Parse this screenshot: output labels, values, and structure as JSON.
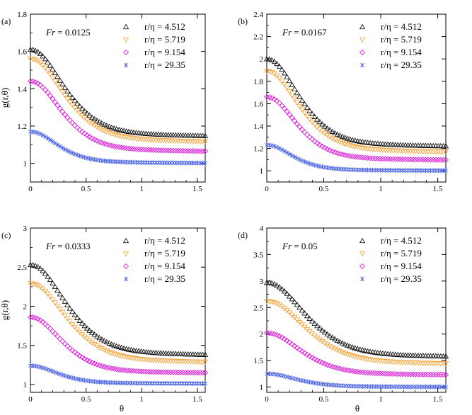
{
  "figure": {
    "x_axis_label": "θ",
    "y_axis_label": "g(r,θ)"
  },
  "legend_labels": [
    "r/η = 4.512",
    "r/η = 5.719",
    "r/η = 9.154",
    "r/η = 29.35"
  ],
  "series_colors": {
    "s1": "#000000",
    "s2": "#f5a033",
    "s3": "#e000e0",
    "s4": "#3a55e6"
  },
  "chart_data": [
    {
      "type": "scatter",
      "panel_label": "(a)",
      "annotation": "Fr = 0.0125",
      "xlabel": "",
      "ylabel": "g(r,θ)",
      "xlim": [
        0,
        1.5708
      ],
      "ylim": [
        0.9,
        1.8
      ],
      "xticks": [
        0,
        0.5,
        1,
        1.5
      ],
      "yticks": [
        1,
        1.2,
        1.4,
        1.6,
        1.8
      ],
      "ytick_labels": [
        "1",
        "1.2",
        "1.4",
        "1.6",
        "1.8"
      ],
      "xtick_labels": [
        "0",
        "0.5",
        "1",
        "1.5"
      ],
      "legend_position": "top-right",
      "series": [
        {
          "name": "r/η = 4.512",
          "marker": "triangle-up",
          "color": "#000000",
          "g0": 1.61,
          "ginf": 1.14,
          "width": 0.32
        },
        {
          "name": "r/η = 5.719",
          "marker": "triangle-down",
          "color": "#f5a033",
          "g0": 1.56,
          "ginf": 1.11,
          "width": 0.32
        },
        {
          "name": "r/η = 9.154",
          "marker": "diamond",
          "color": "#e000e0",
          "g0": 1.44,
          "ginf": 1.06,
          "width": 0.3
        },
        {
          "name": "r/η = 29.35",
          "marker": "asterisk",
          "color": "#3a55e6",
          "g0": 1.17,
          "ginf": 1.0,
          "width": 0.26
        }
      ]
    },
    {
      "type": "scatter",
      "panel_label": "(b)",
      "annotation": "Fr = 0.0167",
      "xlabel": "",
      "ylabel": "",
      "xlim": [
        0,
        1.5708
      ],
      "ylim": [
        0.9,
        2.4
      ],
      "xticks": [
        0,
        0.5,
        1,
        1.5
      ],
      "yticks": [
        1,
        1.2,
        1.4,
        1.6,
        1.8,
        2,
        2.2,
        2.4
      ],
      "ytick_labels": [
        "1",
        "1.2",
        "1.4",
        "1.6",
        "1.8",
        "2",
        "2.2",
        "2.4"
      ],
      "xtick_labels": [
        "0",
        "0.5",
        "1",
        "1.5"
      ],
      "legend_position": "top-right",
      "series": [
        {
          "name": "r/η = 4.512",
          "marker": "triangle-up",
          "color": "#000000",
          "g0": 2.0,
          "ginf": 1.21,
          "width": 0.3
        },
        {
          "name": "r/η = 5.719",
          "marker": "triangle-down",
          "color": "#f5a033",
          "g0": 1.89,
          "ginf": 1.16,
          "width": 0.3
        },
        {
          "name": "r/η = 9.154",
          "marker": "diamond",
          "color": "#e000e0",
          "g0": 1.66,
          "ginf": 1.09,
          "width": 0.28
        },
        {
          "name": "r/η = 29.35",
          "marker": "asterisk",
          "color": "#3a55e6",
          "g0": 1.23,
          "ginf": 1.0,
          "width": 0.24
        }
      ]
    },
    {
      "type": "scatter",
      "panel_label": "(c)",
      "annotation": "Fr = 0.0333",
      "xlabel": "θ",
      "ylabel": "g(r,θ)",
      "xlim": [
        0,
        1.5708
      ],
      "ylim": [
        0.9,
        3.0
      ],
      "xticks": [
        0,
        0.5,
        1,
        1.5
      ],
      "yticks": [
        1,
        1.5,
        2,
        2.5,
        3
      ],
      "ytick_labels": [
        "1",
        "1.5",
        "2",
        "2.5",
        "3"
      ],
      "xtick_labels": [
        "0",
        "0.5",
        "1",
        "1.5"
      ],
      "legend_position": "top-right",
      "series": [
        {
          "name": "r/η = 4.512",
          "marker": "triangle-up",
          "color": "#000000",
          "g0": 2.53,
          "ginf": 1.36,
          "width": 0.34
        },
        {
          "name": "r/η = 5.719",
          "marker": "triangle-down",
          "color": "#f5a033",
          "g0": 2.29,
          "ginf": 1.27,
          "width": 0.34
        },
        {
          "name": "r/η = 9.154",
          "marker": "diamond",
          "color": "#e000e0",
          "g0": 1.86,
          "ginf": 1.14,
          "width": 0.3
        },
        {
          "name": "r/η = 29.35",
          "marker": "asterisk",
          "color": "#3a55e6",
          "g0": 1.24,
          "ginf": 1.01,
          "width": 0.26
        }
      ]
    },
    {
      "type": "scatter",
      "panel_label": "(d)",
      "annotation": "Fr = 0.05",
      "xlabel": "θ",
      "ylabel": "",
      "xlim": [
        0,
        1.5708
      ],
      "ylim": [
        0.9,
        4.0
      ],
      "xticks": [
        0,
        0.5,
        1,
        1.5
      ],
      "yticks": [
        1,
        1.5,
        2,
        2.5,
        3,
        3.5,
        4
      ],
      "ytick_labels": [
        "1",
        "1.5",
        "2",
        "2.5",
        "3",
        "3.5",
        "4"
      ],
      "xtick_labels": [
        "0",
        "0.5",
        "1",
        "1.5"
      ],
      "legend_position": "top-right",
      "series": [
        {
          "name": "r/η = 4.512",
          "marker": "triangle-up",
          "color": "#000000",
          "g0": 2.97,
          "ginf": 1.55,
          "width": 0.36
        },
        {
          "name": "r/η = 5.719",
          "marker": "triangle-down",
          "color": "#f5a033",
          "g0": 2.62,
          "ginf": 1.42,
          "width": 0.36
        },
        {
          "name": "r/η = 9.154",
          "marker": "diamond",
          "color": "#e000e0",
          "g0": 2.02,
          "ginf": 1.22,
          "width": 0.32
        },
        {
          "name": "r/η = 29.35",
          "marker": "asterisk",
          "color": "#3a55e6",
          "g0": 1.25,
          "ginf": 1.0,
          "width": 0.28
        }
      ]
    }
  ]
}
